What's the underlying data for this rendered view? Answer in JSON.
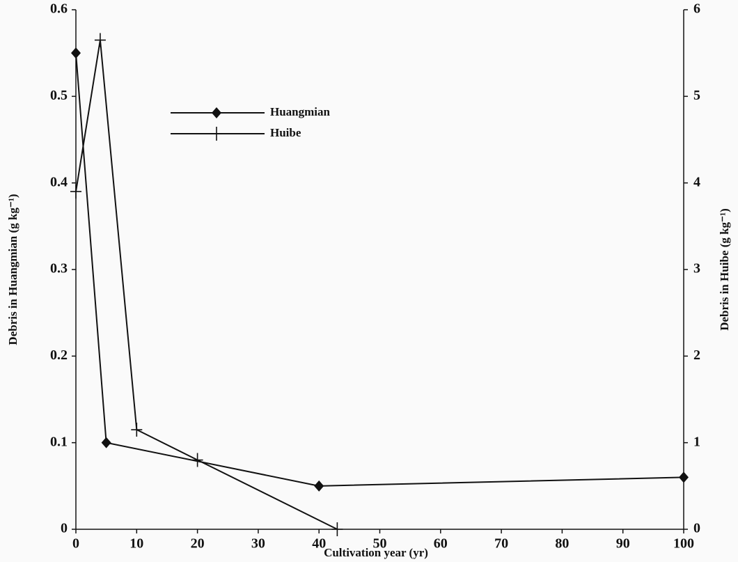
{
  "chart_data": {
    "type": "line",
    "x_label": "Cultivation year (yr)",
    "y_label": "Debris in Huangmian (g kg⁻¹)",
    "y2_label": "Debris in Huibe (g kg⁻¹)",
    "xlim": [
      0,
      100
    ],
    "xticks": [
      0,
      10,
      20,
      30,
      40,
      50,
      60,
      70,
      80,
      90,
      100
    ],
    "ylim": [
      0,
      0.6
    ],
    "yticks": [
      0,
      0.1,
      0.2,
      0.3,
      0.4,
      0.5,
      0.6
    ],
    "y2lim": [
      0,
      6
    ],
    "y2ticks": [
      0,
      1,
      2,
      3,
      4,
      5,
      6
    ],
    "series": [
      {
        "name": "Huangmian",
        "color": "#111111",
        "marker": "diamond",
        "x": [
          0,
          5,
          40,
          100
        ],
        "values": [
          0.55,
          0.1,
          0.05,
          0.06
        ]
      },
      {
        "name": "Huibe",
        "color": "#111111",
        "marker": "plus",
        "axis": "y2",
        "x": [
          0,
          4,
          10,
          20,
          43
        ],
        "values": [
          3.9,
          5.65,
          1.15,
          0.8,
          0
        ]
      }
    ]
  }
}
